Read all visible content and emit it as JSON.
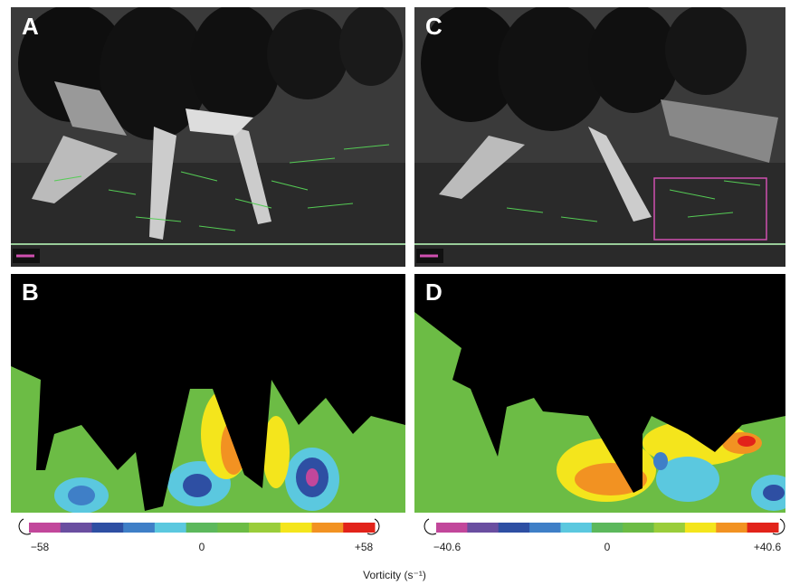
{
  "panels": [
    {
      "label": "A"
    },
    {
      "label": "C"
    },
    {
      "label": "B"
    },
    {
      "label": "D"
    }
  ],
  "colorbars": [
    {
      "ticks": [
        "−58",
        "0",
        "+58"
      ]
    },
    {
      "ticks": [
        "−40.6",
        "0",
        "+40.6"
      ]
    }
  ],
  "colors": [
    "#c2479b",
    "#6a4ea0",
    "#2e4fa3",
    "#3f7fc7",
    "#5bc8df",
    "#5cb85c",
    "#6cbc45",
    "#9acd3a",
    "#f4e51c",
    "#f29222",
    "#e2231a"
  ],
  "axis_label": "Vorticity (s⁻¹)"
}
